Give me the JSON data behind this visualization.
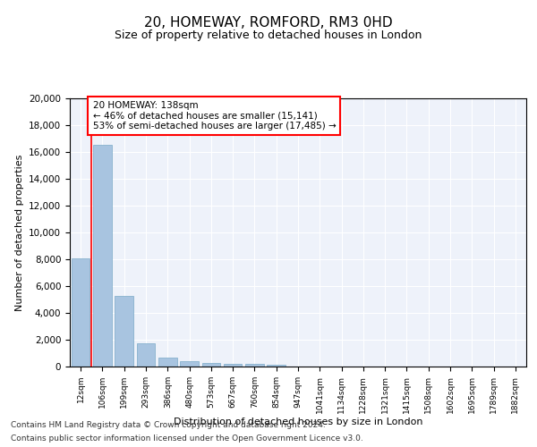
{
  "title_line1": "20, HOMEWAY, ROMFORD, RM3 0HD",
  "title_line2": "Size of property relative to detached houses in London",
  "xlabel": "Distribution of detached houses by size in London",
  "ylabel": "Number of detached properties",
  "categories": [
    "12sqm",
    "106sqm",
    "199sqm",
    "293sqm",
    "386sqm",
    "480sqm",
    "573sqm",
    "667sqm",
    "760sqm",
    "854sqm",
    "947sqm",
    "1041sqm",
    "1134sqm",
    "1228sqm",
    "1321sqm",
    "1415sqm",
    "1508sqm",
    "1602sqm",
    "1695sqm",
    "1789sqm",
    "1882sqm"
  ],
  "values": [
    8100,
    16500,
    5300,
    1750,
    700,
    380,
    280,
    210,
    180,
    160,
    0,
    0,
    0,
    0,
    0,
    0,
    0,
    0,
    0,
    0,
    0
  ],
  "bar_color": "#a8c4e0",
  "bar_edge_color": "#7aaac8",
  "annotation_text_line1": "20 HOMEWAY: 138sqm",
  "annotation_text_line2": "← 46% of detached houses are smaller (15,141)",
  "annotation_text_line3": "53% of semi-detached houses are larger (17,485) →",
  "red_line_x": 0.5,
  "ylim": [
    0,
    20000
  ],
  "yticks": [
    0,
    2000,
    4000,
    6000,
    8000,
    10000,
    12000,
    14000,
    16000,
    18000,
    20000
  ],
  "footer_line1": "Contains HM Land Registry data © Crown copyright and database right 2024.",
  "footer_line2": "Contains public sector information licensed under the Open Government Licence v3.0.",
  "bg_color": "#eef2fa",
  "annotation_box_color": "white",
  "annotation_box_edge_color": "red"
}
